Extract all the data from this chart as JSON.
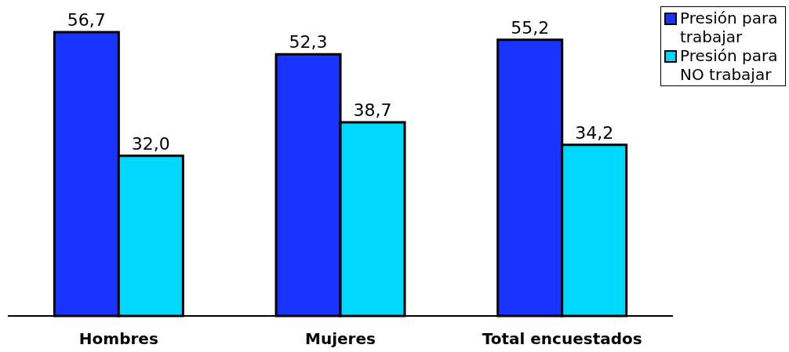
{
  "chart_data": {
    "type": "bar",
    "categories": [
      "Hombres",
      "Mujeres",
      "Total encuestados"
    ],
    "series": [
      {
        "name": "Presión para trabajar",
        "color": "#1a34ff",
        "values": [
          56.7,
          52.3,
          55.2
        ],
        "value_labels": [
          "56,7",
          "52,3",
          "55,2"
        ]
      },
      {
        "name": "Presión para NO trabajar",
        "color": "#00d8ff",
        "values": [
          32.0,
          38.7,
          34.2
        ],
        "value_labels": [
          "32,0",
          "38,7",
          "34,2"
        ]
      }
    ],
    "legend": "top right"
  }
}
